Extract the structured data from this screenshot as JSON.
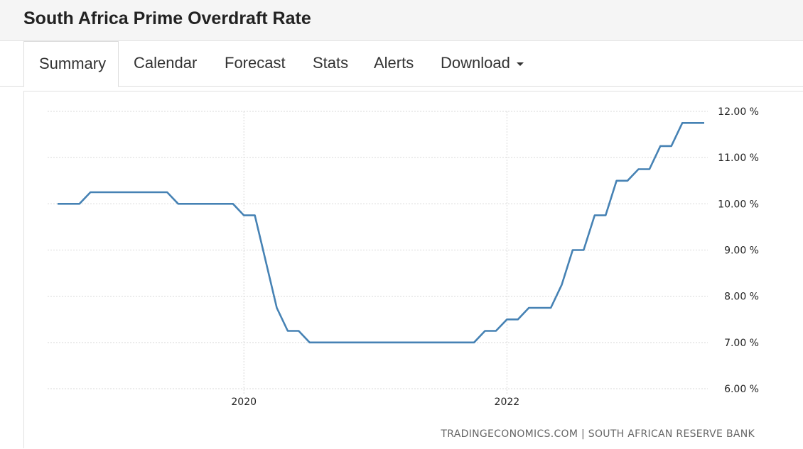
{
  "page": {
    "title": "South Africa Prime Overdraft Rate"
  },
  "tabs": [
    {
      "label": "Summary",
      "active": true
    },
    {
      "label": "Calendar"
    },
    {
      "label": "Forecast"
    },
    {
      "label": "Stats"
    },
    {
      "label": "Alerts"
    },
    {
      "label": "Download"
    }
  ],
  "chart_data": {
    "type": "line",
    "series_color": "#4682b4",
    "ylim": [
      6,
      12
    ],
    "yticks": [
      12,
      11,
      10,
      9,
      8,
      7,
      6
    ],
    "ytick_labels": [
      "12.00 %",
      "11.00 %",
      "10.00 %",
      "9.00 %",
      "8.00 %",
      "7.00 %",
      "6.00 %"
    ],
    "xticks": [
      "2020",
      "2022"
    ],
    "grid": true,
    "source": "TRADINGECONOMICS.COM | SOUTH AFRICAN RESERVE BANK",
    "series": [
      {
        "x": [
          "2018-08",
          "2018-09",
          "2018-10",
          "2018-11",
          "2018-12",
          "2019-01",
          "2019-02",
          "2019-03",
          "2019-04",
          "2019-05",
          "2019-06",
          "2019-07",
          "2019-08",
          "2019-09",
          "2019-10",
          "2019-11",
          "2019-12",
          "2020-01",
          "2020-02",
          "2020-03",
          "2020-04",
          "2020-05",
          "2020-06",
          "2020-07",
          "2020-08",
          "2020-09",
          "2020-10",
          "2020-11",
          "2020-12",
          "2021-01",
          "2021-02",
          "2021-03",
          "2021-04",
          "2021-05",
          "2021-06",
          "2021-07",
          "2021-08",
          "2021-09",
          "2021-10",
          "2021-11",
          "2021-12",
          "2022-01",
          "2022-02",
          "2022-03",
          "2022-04",
          "2022-05",
          "2022-06",
          "2022-07",
          "2022-08",
          "2022-09",
          "2022-10",
          "2022-11",
          "2022-12",
          "2023-01",
          "2023-02",
          "2023-03",
          "2023-04",
          "2023-05",
          "2023-06",
          "2023-07"
        ],
        "values": [
          10.0,
          10.0,
          10.0,
          10.25,
          10.25,
          10.25,
          10.25,
          10.25,
          10.25,
          10.25,
          10.25,
          10.0,
          10.0,
          10.0,
          10.0,
          10.0,
          10.0,
          9.75,
          9.75,
          8.75,
          7.75,
          7.25,
          7.25,
          7.0,
          7.0,
          7.0,
          7.0,
          7.0,
          7.0,
          7.0,
          7.0,
          7.0,
          7.0,
          7.0,
          7.0,
          7.0,
          7.0,
          7.0,
          7.0,
          7.25,
          7.25,
          7.5,
          7.5,
          7.75,
          7.75,
          7.75,
          8.25,
          9.0,
          9.0,
          9.75,
          9.75,
          10.5,
          10.5,
          10.75,
          10.75,
          11.25,
          11.25,
          11.75,
          11.75,
          11.75
        ]
      }
    ]
  }
}
